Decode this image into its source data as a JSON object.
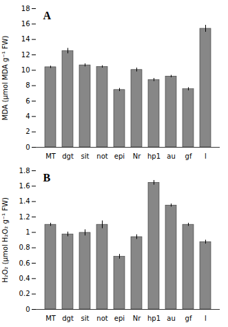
{
  "chart_data": [
    {
      "type": "bar",
      "annotations": [
        "A"
      ],
      "ylabel": "MDA (μmol MDA g⁻¹ FW)",
      "categories": [
        "MT",
        "dgt",
        "sit",
        "not",
        "epi",
        "Nr",
        "hp1",
        "au",
        "gf",
        "l"
      ],
      "values": [
        10.4,
        12.5,
        10.65,
        10.45,
        7.45,
        10.05,
        8.75,
        9.2,
        7.55,
        15.4
      ],
      "errors": [
        0.15,
        0.35,
        0.2,
        0.15,
        0.2,
        0.25,
        0.2,
        0.15,
        0.2,
        0.45
      ],
      "color": "#878787",
      "ylim": [
        0,
        18
      ],
      "yticks": [
        0,
        2,
        4,
        6,
        8,
        10,
        12,
        14,
        16,
        18
      ],
      "grid": false
    },
    {
      "type": "bar",
      "annotations": [
        "B"
      ],
      "ylabel": "H₂O₂ (μmol H₂O₂ g⁻¹ FW)",
      "categories": [
        "MT",
        "dgt",
        "sit",
        "not",
        "epi",
        "Nr",
        "hp1",
        "au",
        "gf",
        "l"
      ],
      "values": [
        1.1,
        0.975,
        0.995,
        1.1,
        0.685,
        0.94,
        1.645,
        1.35,
        1.1,
        0.875
      ],
      "errors": [
        0.02,
        0.03,
        0.04,
        0.05,
        0.03,
        0.03,
        0.03,
        0.02,
        0.02,
        0.025
      ],
      "color": "#878787",
      "ylim": [
        0,
        1.8
      ],
      "yticks": [
        0,
        0.2,
        0.4,
        0.6,
        0.8,
        1.0,
        1.2,
        1.4,
        1.6,
        1.8
      ],
      "grid": false
    }
  ]
}
